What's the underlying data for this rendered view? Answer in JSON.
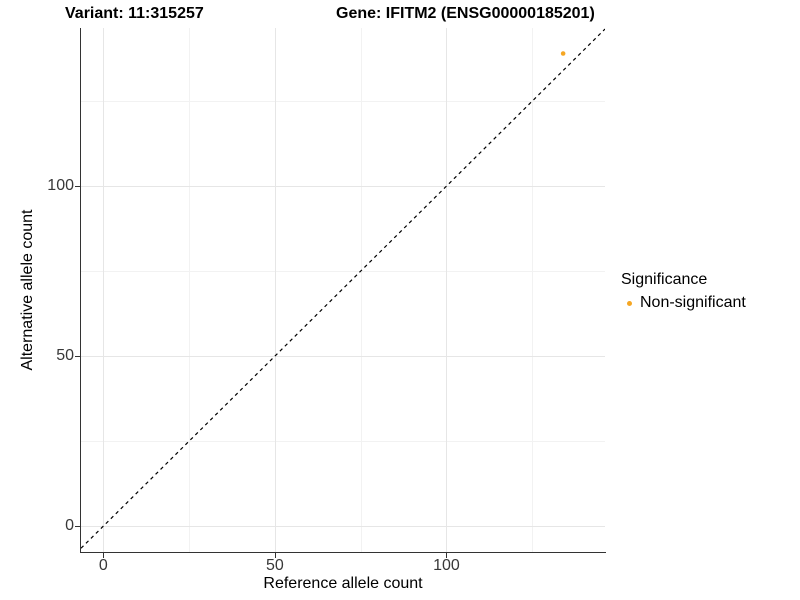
{
  "titles": {
    "variant": "Variant: 11:315257",
    "gene": "Gene: IFITM2 (ENSG00000185201)"
  },
  "axes": {
    "x_label": "Reference allele count",
    "y_label": "Alternative allele count"
  },
  "legend": {
    "title": "Significance",
    "items": [
      {
        "label": "Non-significant",
        "color": "#F5A623"
      }
    ]
  },
  "chart_data": {
    "type": "scatter",
    "title": "Variant: 11:315257 | Gene: IFITM2 (ENSG00000185201)",
    "xlabel": "Reference allele count",
    "ylabel": "Alternative allele count",
    "x_ticks": [
      0,
      50,
      100
    ],
    "y_ticks": [
      0,
      50,
      100
    ],
    "x_minor_ticks": [
      25,
      75,
      125
    ],
    "y_minor_ticks": [
      25,
      75,
      125
    ],
    "x_range": [
      -6.5,
      146.2
    ],
    "y_range": [
      -7.6,
      146.5
    ],
    "grid": true,
    "legend_position": "right",
    "series": [
      {
        "name": "Non-significant",
        "color": "#F5A623",
        "points": [
          {
            "x": 134,
            "y": 139
          }
        ]
      }
    ],
    "reference_line": {
      "kind": "identity",
      "equation": "y = x",
      "style": "dashed",
      "color": "#000000"
    }
  }
}
